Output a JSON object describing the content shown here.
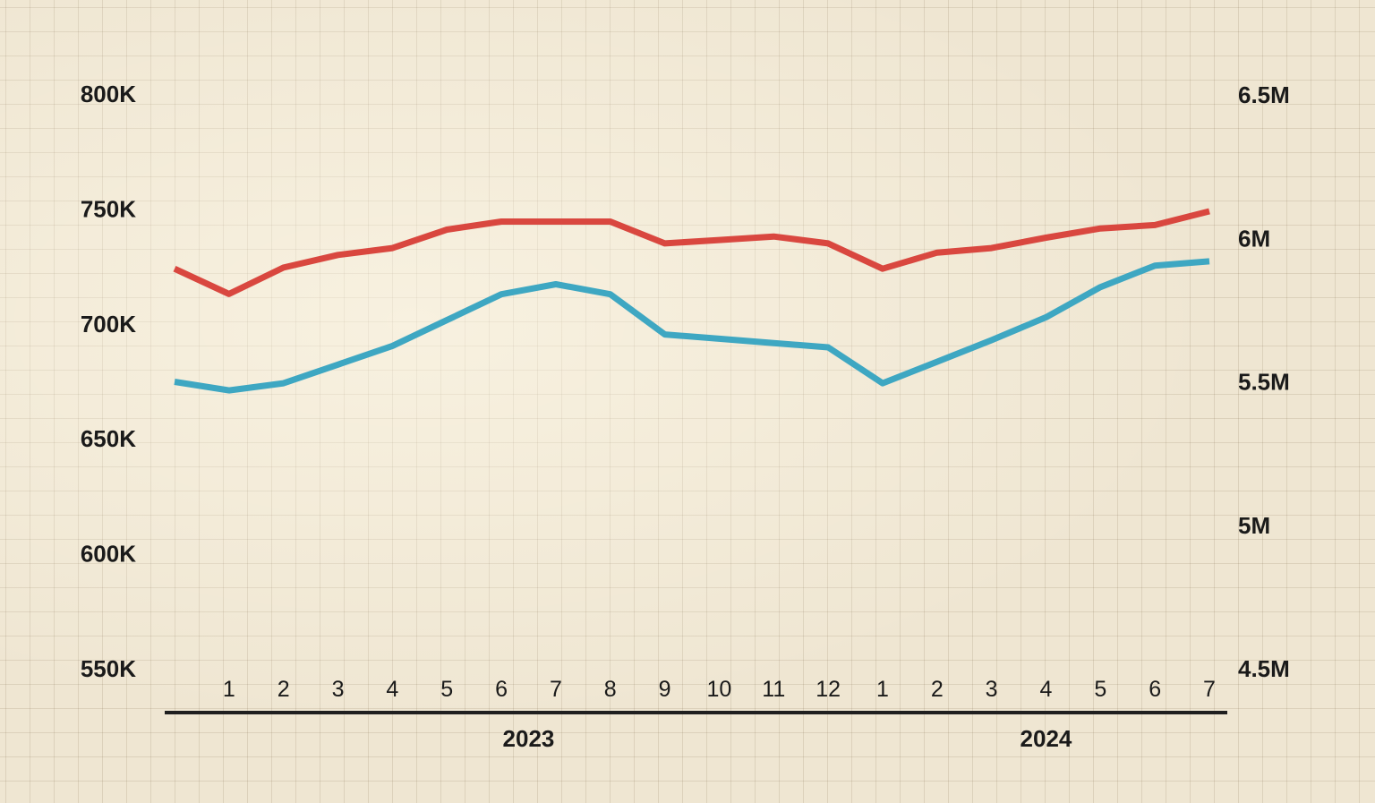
{
  "chart_data": {
    "type": "line",
    "title": "",
    "xlabel": "",
    "ylabel": "",
    "categories": [
      "",
      "1",
      "2",
      "3",
      "4",
      "5",
      "6",
      "7",
      "8",
      "9",
      "10",
      "11",
      "12",
      "1",
      "2",
      "3",
      "4",
      "5",
      "6",
      "7"
    ],
    "year_labels": [
      {
        "label": "2023",
        "from_index": 1,
        "to_index": 12
      },
      {
        "label": "2024",
        "from_index": 13,
        "to_index": 19
      }
    ],
    "left_axis": {
      "ylim": [
        550000,
        800000
      ],
      "ticks": [
        550000,
        600000,
        650000,
        700000,
        750000,
        800000
      ],
      "tick_labels": [
        "550K",
        "600K",
        "650K",
        "700K",
        "750K",
        "800K"
      ]
    },
    "right_axis": {
      "ylim": [
        4500000,
        6500000
      ],
      "ticks": [
        4500000,
        5000000,
        5500000,
        6000000,
        6500000
      ],
      "tick_labels": [
        "4.5M",
        "5M",
        "5.5M",
        "6M",
        "6.5M"
      ]
    },
    "series": [
      {
        "axis": "left",
        "color": "#d9473f",
        "values": [
          724000,
          713000,
          724500,
          730000,
          733000,
          741000,
          744500,
          744500,
          744500,
          735000,
          736500,
          738000,
          735000,
          724000,
          731000,
          733000,
          737500,
          741500,
          743000,
          749000
        ]
      },
      {
        "axis": "right",
        "color": "#3ea7c2",
        "values": [
          5500000,
          5470000,
          5495000,
          5560000,
          5625000,
          5715000,
          5805000,
          5840000,
          5805000,
          5665000,
          5650000,
          5635000,
          5620000,
          5495000,
          5570000,
          5645000,
          5725000,
          5830000,
          5905000,
          5920000
        ]
      }
    ],
    "grid": true,
    "legend": "none"
  }
}
